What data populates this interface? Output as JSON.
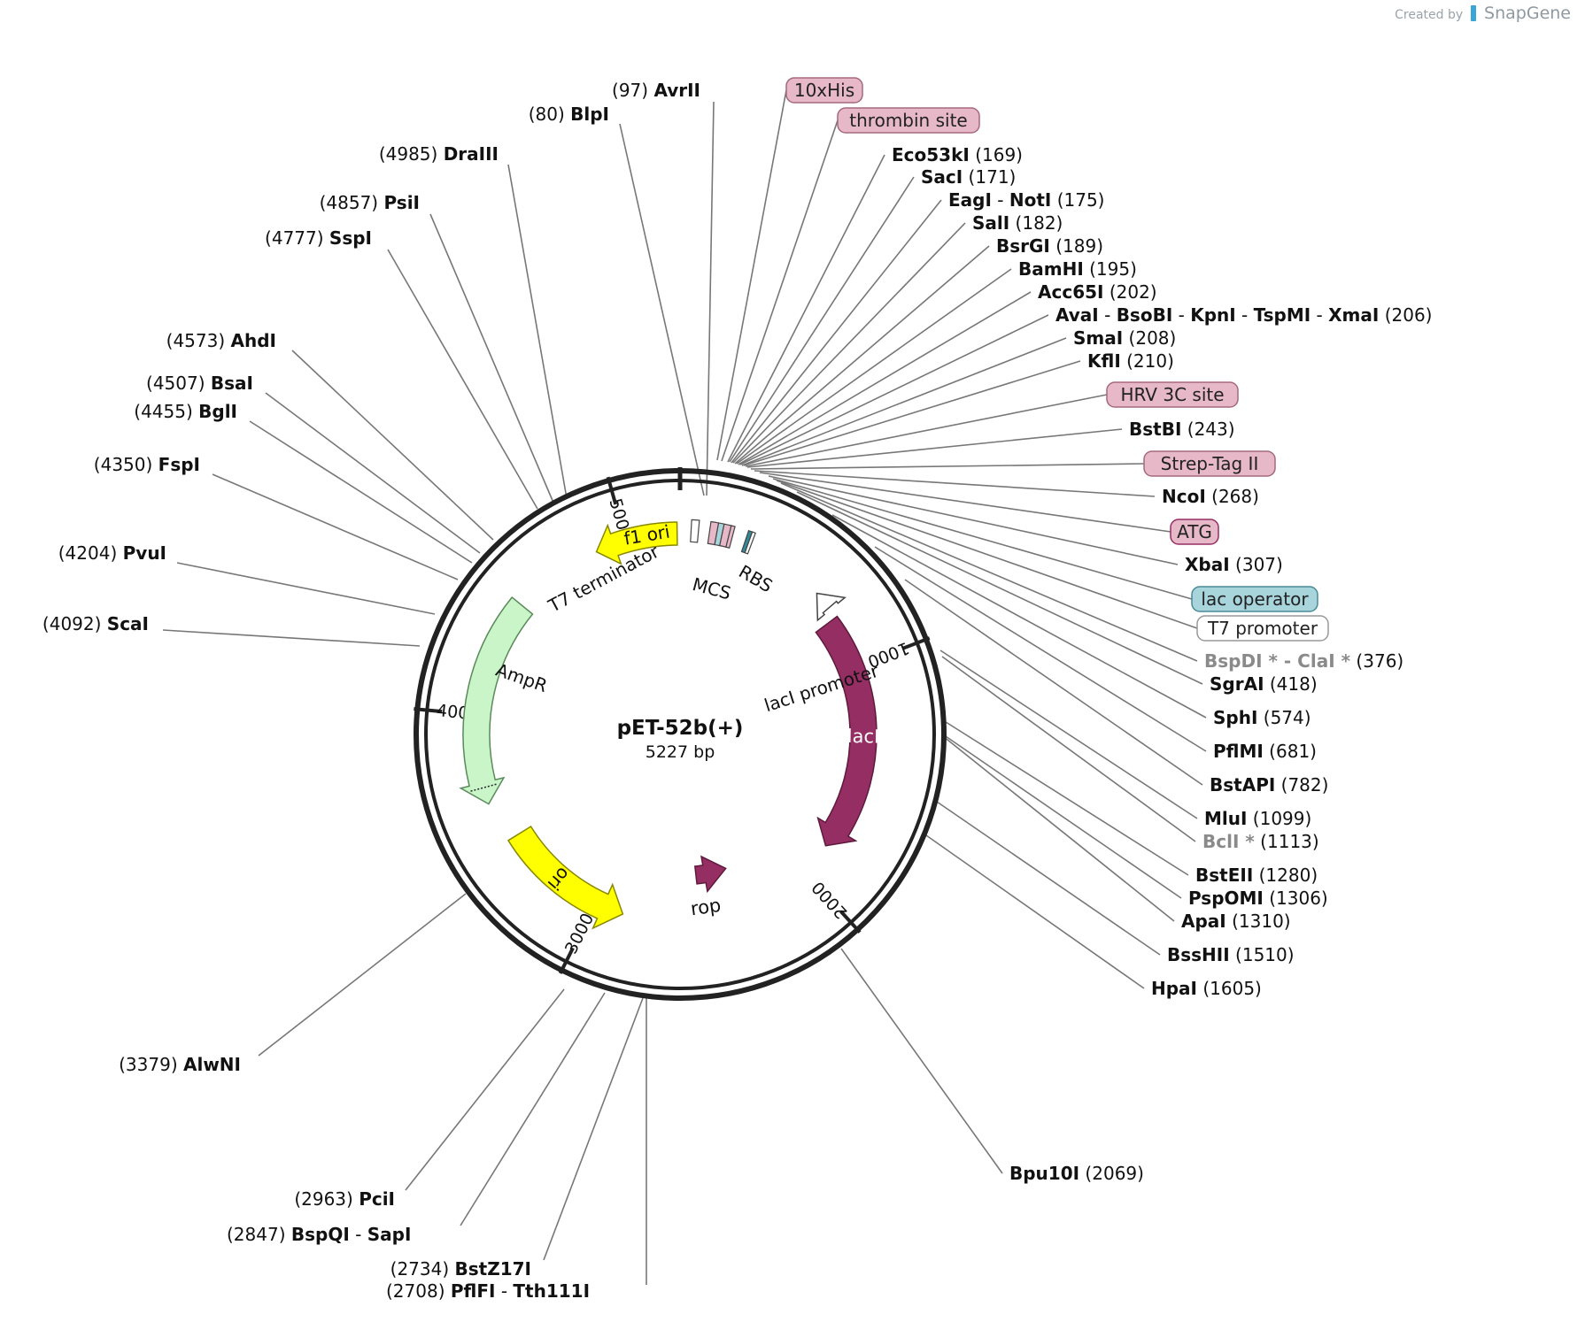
{
  "watermark": {
    "created_by": "Created by",
    "brand": "SnapGene"
  },
  "plasmid": {
    "name": "pET-52b(+)",
    "size_label": "5227 bp",
    "length": 5227
  },
  "ticks": [
    "1000",
    "2000",
    "3000",
    "4000",
    "5000"
  ],
  "colors": {
    "line": "#777777",
    "ring": "#222222",
    "lacI": "#952e62",
    "rop": "#952e62",
    "ori_yellow": "#ffff00",
    "ampR": "#c9f5c9",
    "his_tag": "#e6b8c8",
    "lac_operator": "#a8d4dc"
  },
  "features": [
    {
      "name": "lacI",
      "label": "lacI",
      "color": "#952e62",
      "text_color": "#ffffff",
      "start": 770,
      "end": 1850,
      "direction": "forward"
    },
    {
      "name": "lacI-promoter",
      "label": "lacI promoter",
      "color": "#ffffff",
      "start": 640,
      "end": 720,
      "direction": "reverse"
    },
    {
      "name": "rop",
      "label": "rop",
      "color": "#952e62",
      "start": 2320,
      "end": 2520,
      "direction": "reverse"
    },
    {
      "name": "ori",
      "label": "ori",
      "color": "#ffff00",
      "start": 2870,
      "end": 3460,
      "direction": "reverse"
    },
    {
      "name": "AmpR",
      "label": "AmpR",
      "color": "#c9f5c9",
      "start": 3630,
      "end": 4490,
      "direction": "reverse"
    },
    {
      "name": "f1-ori",
      "label": "f1 ori",
      "color": "#ffff00",
      "start": 4870,
      "end": 5220,
      "direction": "reverse"
    },
    {
      "name": "T7-terminator",
      "label": "T7 terminator",
      "color": "#ffffff",
      "start": 45,
      "end": 80,
      "direction": "none"
    },
    {
      "name": "MCS",
      "label": "MCS",
      "color": "#ffffff",
      "start": 160,
      "end": 215,
      "direction": "none"
    },
    {
      "name": "RBS",
      "label": "RBS",
      "color": "#ffffff",
      "start": 278,
      "end": 298,
      "direction": "none"
    }
  ],
  "left_sites": [
    {
      "pos": "(97)",
      "name": "AvrII"
    },
    {
      "pos": "(80)",
      "name": "BlpI"
    },
    {
      "pos": "(4985)",
      "name": "DraIII"
    },
    {
      "pos": "(4857)",
      "name": "PsiI"
    },
    {
      "pos": "(4777)",
      "name": "SspI"
    },
    {
      "pos": "(4573)",
      "name": "AhdI"
    },
    {
      "pos": "(4507)",
      "name": "BsaI"
    },
    {
      "pos": "(4455)",
      "name": "BglI"
    },
    {
      "pos": "(4350)",
      "name": "FspI"
    },
    {
      "pos": "(4204)",
      "name": "PvuI"
    },
    {
      "pos": "(4092)",
      "name": "ScaI"
    },
    {
      "pos": "(3379)",
      "name": "AlwNI"
    },
    {
      "pos": "(2963)",
      "name": "PciI"
    },
    {
      "pos": "(2847)",
      "name": "BspQI",
      "extra": "SapI"
    },
    {
      "pos": "(2734)",
      "name": "BstZ17I"
    },
    {
      "pos": "(2708)",
      "name": "PflFI",
      "extra": "Tth111I"
    }
  ],
  "right_sites": [
    {
      "name": "Eco53kI",
      "pos": "(169)"
    },
    {
      "name": "SacI",
      "pos": "(171)"
    },
    {
      "name": "EagI",
      "extra": "NotI",
      "pos": "(175)"
    },
    {
      "name": "SalI",
      "pos": "(182)"
    },
    {
      "name": "BsrGI",
      "pos": "(189)"
    },
    {
      "name": "BamHI",
      "pos": "(195)"
    },
    {
      "name": "Acc65I",
      "pos": "(202)"
    },
    {
      "name": "AvaI",
      "extra": "BsoBI",
      "extra2": "KpnI",
      "extra3": "TspMI",
      "extra4": "XmaI",
      "pos": "(206)"
    },
    {
      "name": "SmaI",
      "pos": "(208)"
    },
    {
      "name": "KflI",
      "pos": "(210)"
    },
    {
      "name": "BstBI",
      "pos": "(243)"
    },
    {
      "name": "NcoI",
      "pos": "(268)"
    },
    {
      "name": "XbaI",
      "pos": "(307)"
    },
    {
      "name": "BspDI *",
      "extra": "ClaI *",
      "pos": "(376)",
      "gray": true
    },
    {
      "name": "SgrAI",
      "pos": "(418)"
    },
    {
      "name": "SphI",
      "pos": "(574)"
    },
    {
      "name": "PflMI",
      "pos": "(681)"
    },
    {
      "name": "BstAPI",
      "pos": "(782)"
    },
    {
      "name": "MluI",
      "pos": "(1099)"
    },
    {
      "name": "BclI *",
      "pos": "(1113)",
      "gray": true
    },
    {
      "name": "BstEII",
      "pos": "(1280)"
    },
    {
      "name": "PspOMI",
      "pos": "(1306)"
    },
    {
      "name": "ApaI",
      "pos": "(1310)"
    },
    {
      "name": "BssHII",
      "pos": "(1510)"
    },
    {
      "name": "HpaI",
      "pos": "(1605)"
    },
    {
      "name": "Bpu10I",
      "pos": "(2069)"
    }
  ],
  "feature_boxes": [
    {
      "label": "10xHis",
      "fill": "#e6b8c8",
      "stroke": "#a5697f"
    },
    {
      "label": "thrombin site",
      "fill": "#e6b8c8",
      "stroke": "#a5697f"
    },
    {
      "label": "HRV 3C site",
      "fill": "#e6b8c8",
      "stroke": "#a5697f"
    },
    {
      "label": "Strep-Tag II",
      "fill": "#e6b8c8",
      "stroke": "#a5697f"
    },
    {
      "label": "ATG",
      "fill": "#e6b8c8",
      "stroke": "#952e62"
    },
    {
      "label": "lac operator",
      "fill": "#a8d4dc",
      "stroke": "#4a8a96"
    },
    {
      "label": "T7 promoter",
      "fill": "#ffffff",
      "stroke": "#999999"
    }
  ]
}
